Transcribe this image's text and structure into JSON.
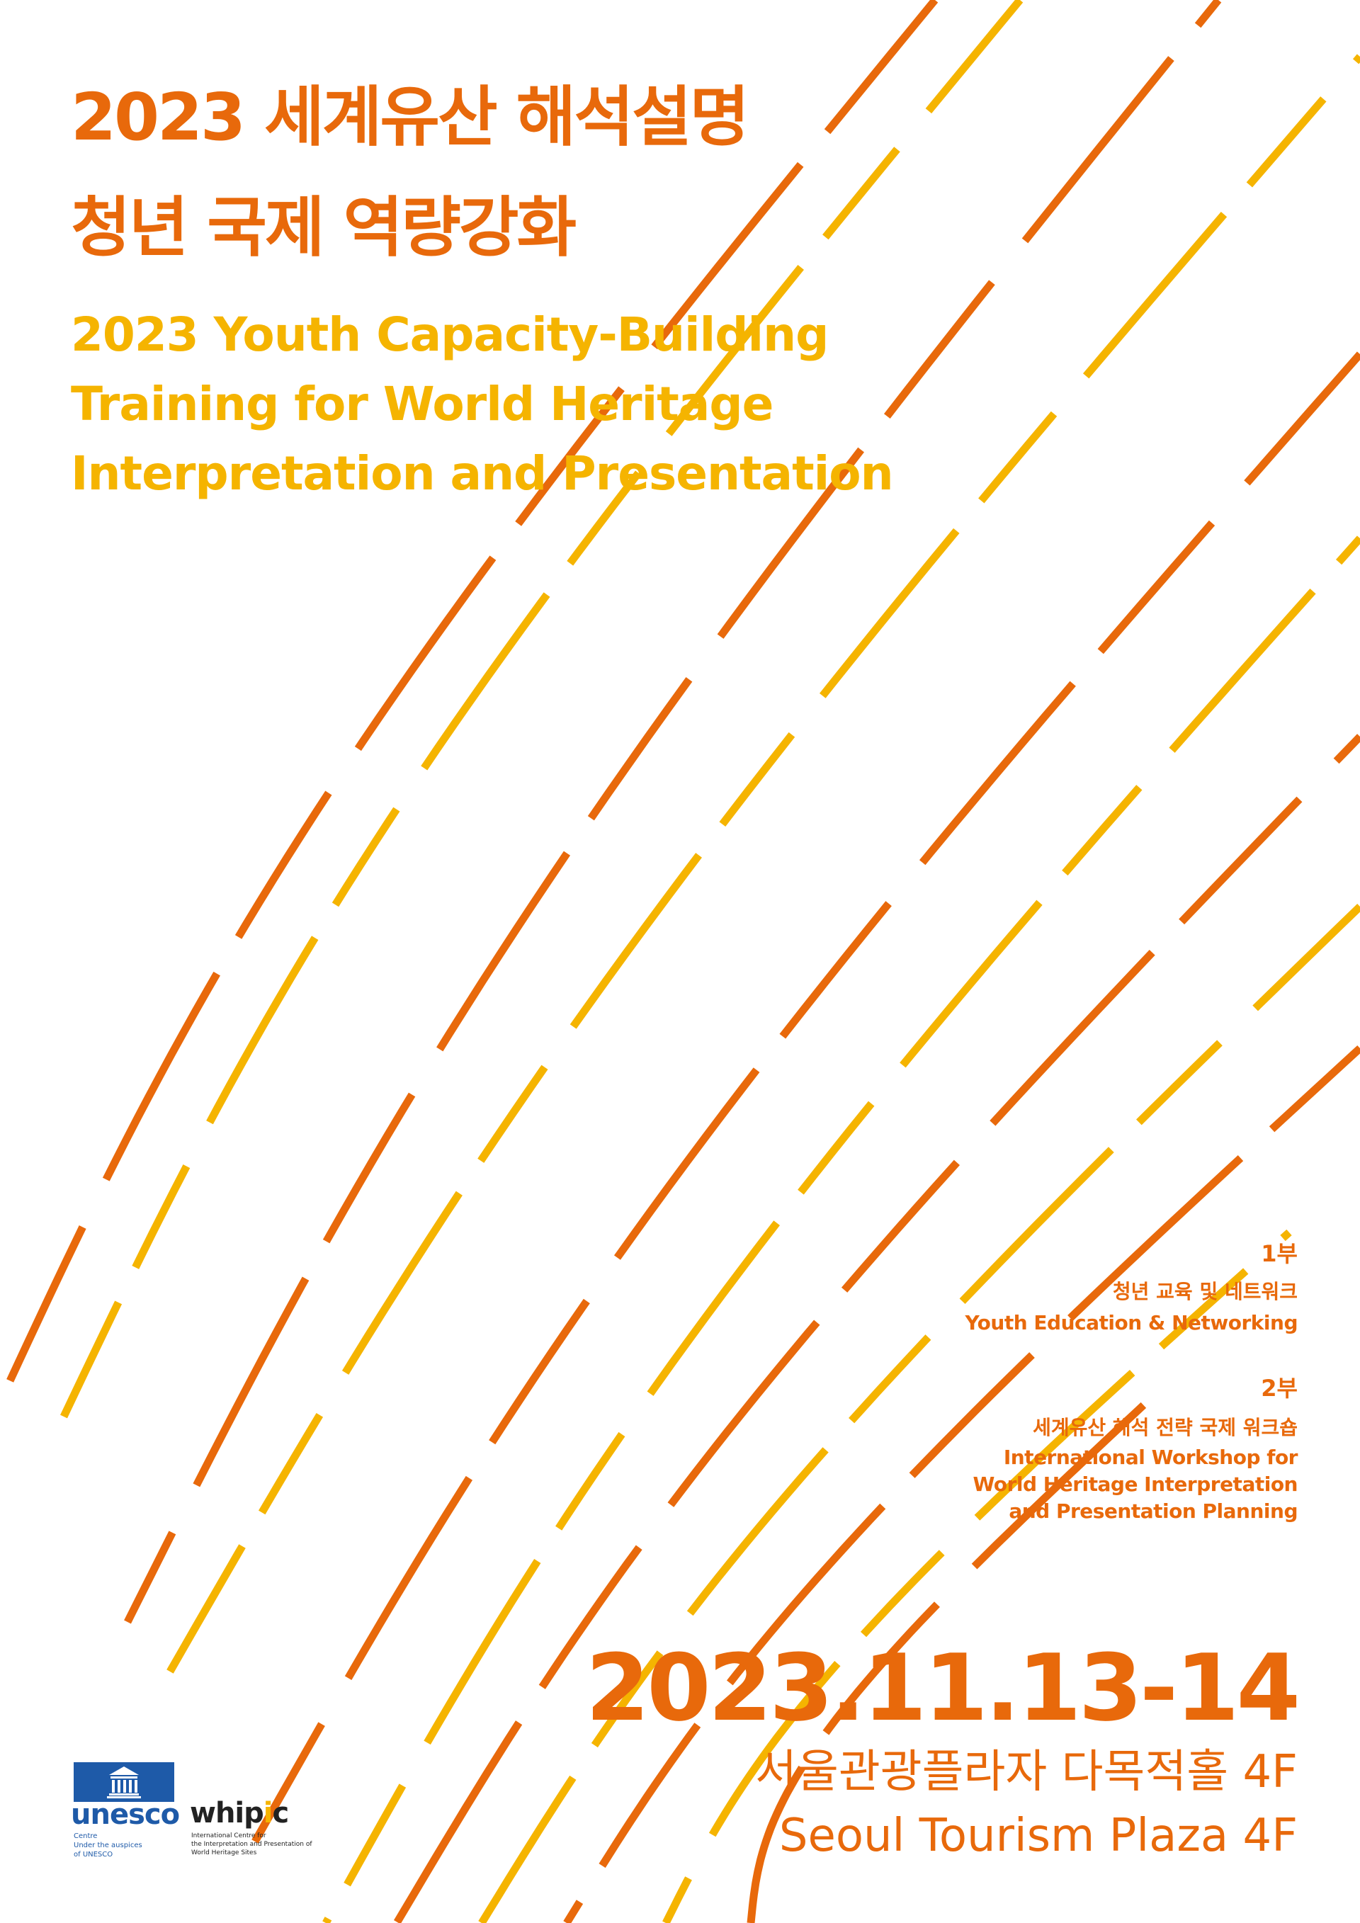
{
  "title_ko": {
    "line1": "2023 세계유산 해석설명",
    "line2": "청년 국제 역량강화"
  },
  "title_en": {
    "line1": "2023 Youth Capacity-Building",
    "line2": "Training for World Heritage",
    "line3": "Interpretation and Presentation"
  },
  "program": {
    "part1": {
      "label": "1부",
      "ko": "청년 교육 및 네트워크",
      "en": "Youth Education & Networking"
    },
    "part2": {
      "label": "2부",
      "ko": "세계유산 해석 전략 국제 워크숍",
      "en_line1": "International Workshop for",
      "en_line2": "World Heritage Interpretation",
      "en_line3": "and Presentation Planning"
    }
  },
  "event": {
    "date": "2023.11.13-14",
    "venue_ko": "서울관광플라자 다목적홀 4F",
    "venue_en": "Seoul Tourism Plaza 4F"
  },
  "logos": {
    "unesco": {
      "name": "unesco",
      "icon": "unesco-temple-icon",
      "line1": "Centre",
      "line2": "Under the auspices",
      "line3": "of UNESCO"
    },
    "whipic": {
      "name_start": "whip",
      "name_dot": "i",
      "name_end": "c",
      "line1": "International Centre for",
      "line2": "the Interpretation and Presentation of",
      "line3": "World Heritage Sites"
    }
  },
  "colors": {
    "orange": "#e8690b",
    "yellow": "#f5b400",
    "unesco_blue": "#1e5aa8",
    "background": "#ffffff"
  }
}
